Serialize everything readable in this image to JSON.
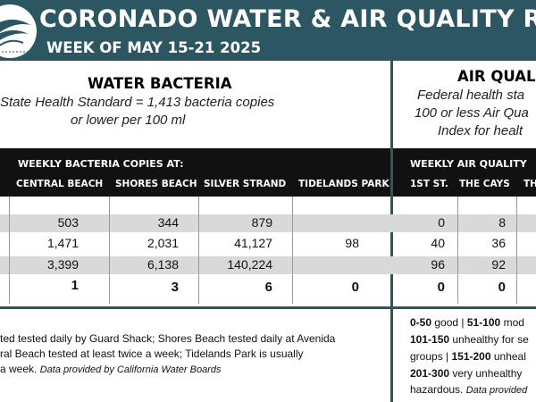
{
  "header": {
    "title": "CORONADO WATER & AIR QUALITY REPO",
    "subtitle": "WEEK OF MAY 15-21 2025"
  },
  "colors": {
    "header_bg": "#2d5663",
    "table_header_bg": "#111111",
    "row_stripe": "#d9d9d9"
  },
  "water": {
    "title": "WATER BACTERIA",
    "standard_line1": "State Health Standard  = 1,413 bacteria copies",
    "standard_line2": "or lower per 100 ml",
    "table_title": "WEEKLY BACTERIA COPIES AT:",
    "columns": [
      "CENTRAL BEACH",
      "SHORES BEACH",
      "SILVER STRAND",
      "TIDELANDS PARK"
    ],
    "rows": [
      [
        "503",
        "344",
        "879",
        ""
      ],
      [
        "1,471",
        "2,031",
        "41,127",
        "98"
      ],
      [
        "3,399",
        "6,138",
        "140,224",
        ""
      ],
      [
        "1",
        "3",
        "6",
        "0"
      ]
    ],
    "note_line1": "ted tested daily by Guard Shack; Shores Beach tested daily at Avenida",
    "note_line2": "ral Beach tested at least twice a week; Tidelands Park is usually",
    "note_line3": " a week.",
    "note_credit": "Data provided by California Water Boards"
  },
  "air": {
    "title": "AIR QUALIT",
    "standard_line1": "Federal health sta",
    "standard_line2": "100 or less Air Qua",
    "standard_line3": "Index for healt",
    "table_title": "WEEKLY AIR QUALITY",
    "columns": [
      "1ST ST.",
      "THE CAYS",
      "TH"
    ],
    "rows": [
      [
        "0",
        "8"
      ],
      [
        "40",
        "36"
      ],
      [
        "96",
        "92"
      ],
      [
        "0",
        "0"
      ]
    ],
    "scale": {
      "r1_range1": "0-50",
      "r1_label1": " good | ",
      "r1_range2": "51-100",
      "r1_label2": " mod",
      "r2_range": "101-150",
      "r2_label": " unhealthy for se",
      "r3_text": "groups | ",
      "r3_range": "151-200",
      "r3_label": " unheal",
      "r4_range": "201-300",
      "r4_label": " very unhealthy",
      "r5_text": "hazardous. ",
      "r5_credit": "Data provided"
    }
  }
}
